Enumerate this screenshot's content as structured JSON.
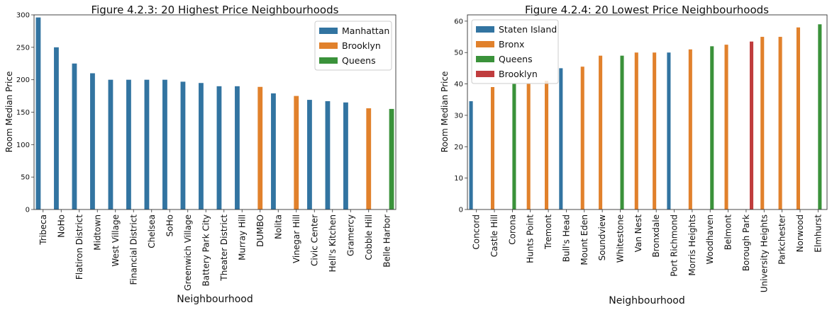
{
  "chart_data": [
    {
      "type": "bar",
      "title": "Figure 4.2.3: 20 Highest Price Neighbourhoods",
      "xlabel": "Neighbourhood",
      "ylabel": "Room Median Price",
      "ylim": [
        0,
        300
      ],
      "yticks": [
        0,
        50,
        100,
        150,
        200,
        250,
        300
      ],
      "hue_order": [
        "Manhattan",
        "Brooklyn",
        "Queens"
      ],
      "legend_position": "top-right",
      "colors": {
        "Manhattan": "#3274a1",
        "Brooklyn": "#e1812c",
        "Queens": "#3a923a"
      },
      "categories": [
        "Tribeca",
        "NoHo",
        "Flatiron District",
        "Midtown",
        "West Village",
        "Financial District",
        "Chelsea",
        "SoHo",
        "Greenwich Village",
        "Battery Park City",
        "Theater District",
        "Murray Hill",
        "DUMBO",
        "Nolita",
        "Vinegar Hill",
        "Civic Center",
        "Hell's Kitchen",
        "Gramercy",
        "Cobble Hill",
        "Belle Harbor"
      ],
      "groups": [
        "Manhattan",
        "Manhattan",
        "Manhattan",
        "Manhattan",
        "Manhattan",
        "Manhattan",
        "Manhattan",
        "Manhattan",
        "Manhattan",
        "Manhattan",
        "Manhattan",
        "Manhattan",
        "Brooklyn",
        "Manhattan",
        "Brooklyn",
        "Manhattan",
        "Manhattan",
        "Manhattan",
        "Brooklyn",
        "Queens"
      ],
      "values": [
        296,
        250,
        225,
        210,
        200,
        200,
        200,
        200,
        197,
        195,
        190,
        190,
        189,
        179,
        175,
        169,
        167,
        165,
        156,
        155
      ]
    },
    {
      "type": "bar",
      "title": "Figure 4.2.4: 20 Lowest Price Neighbourhoods",
      "xlabel": "Neighbourhood",
      "ylabel": "Room Median Price",
      "ylim": [
        0,
        62
      ],
      "yticks": [
        0,
        10,
        20,
        30,
        40,
        50,
        60
      ],
      "hue_order": [
        "Staten Island",
        "Bronx",
        "Queens",
        "Brooklyn"
      ],
      "legend_position": "top-left",
      "colors": {
        "Staten Island": "#3274a1",
        "Bronx": "#e1812c",
        "Queens": "#3a923a",
        "Brooklyn": "#c03d3e"
      },
      "categories": [
        "Concord",
        "Castle Hill",
        "Corona",
        "Hunts Point",
        "Tremont",
        "Bull's Head",
        "Mount Eden",
        "Soundview",
        "Whitestone",
        "Van Nest",
        "Bronxdale",
        "Port Richmond",
        "Morris Heights",
        "Woodhaven",
        "Belmont",
        "Borough Park",
        "University Heights",
        "Parkchester",
        "Norwood",
        "Elmhurst"
      ],
      "groups": [
        "Staten Island",
        "Bronx",
        "Queens",
        "Bronx",
        "Bronx",
        "Staten Island",
        "Bronx",
        "Bronx",
        "Queens",
        "Bronx",
        "Bronx",
        "Staten Island",
        "Bronx",
        "Queens",
        "Bronx",
        "Brooklyn",
        "Bronx",
        "Bronx",
        "Bronx",
        "Queens"
      ],
      "values": [
        34.5,
        39,
        40,
        40,
        41,
        45,
        45.5,
        49,
        49,
        50,
        50,
        50,
        51,
        52,
        52.5,
        53.5,
        55,
        55,
        58,
        59
      ]
    }
  ]
}
